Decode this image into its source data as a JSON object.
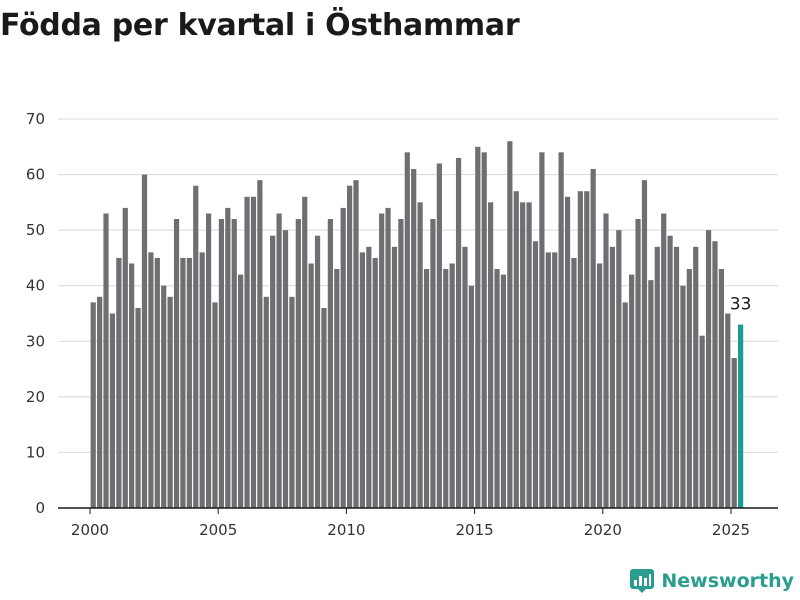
{
  "title": "Födda per kvartal i Östhammar",
  "brand": {
    "name": "Newsworthy",
    "icon": "newsworthy-logo-icon"
  },
  "colors": {
    "bar": "#6e6e73",
    "highlight": "#1a9c92",
    "grid": "#d9d9d9",
    "axis": "#1a1a1a",
    "brand": "#2a9d8f"
  },
  "chart_data": {
    "type": "bar",
    "title": "Födda per kvartal i Östhammar",
    "xlabel": "",
    "ylabel": "",
    "ylim": [
      0,
      70
    ],
    "yticks": [
      0,
      10,
      20,
      30,
      40,
      50,
      60,
      70
    ],
    "xticks": [
      "2000",
      "2005",
      "2010",
      "2015",
      "2020",
      "2025"
    ],
    "grid": true,
    "first_period": "2000 Q1",
    "last_period": "2025 Q2",
    "values": [
      37,
      38,
      53,
      35,
      45,
      54,
      44,
      36,
      60,
      46,
      45,
      40,
      38,
      52,
      45,
      45,
      58,
      46,
      53,
      37,
      52,
      54,
      52,
      42,
      56,
      56,
      59,
      38,
      49,
      53,
      50,
      38,
      52,
      56,
      44,
      49,
      36,
      52,
      43,
      54,
      58,
      59,
      46,
      47,
      45,
      53,
      54,
      47,
      52,
      64,
      61,
      55,
      43,
      52,
      62,
      43,
      44,
      63,
      47,
      40,
      65,
      64,
      55,
      43,
      42,
      66,
      57,
      55,
      55,
      48,
      64,
      46,
      46,
      64,
      56,
      45,
      57,
      57,
      61,
      44,
      53,
      47,
      50,
      37,
      42,
      52,
      59,
      41,
      47,
      53,
      49,
      47,
      40,
      43,
      47,
      31,
      50,
      48,
      43,
      35,
      27,
      33
    ],
    "highlight_label": "33"
  }
}
